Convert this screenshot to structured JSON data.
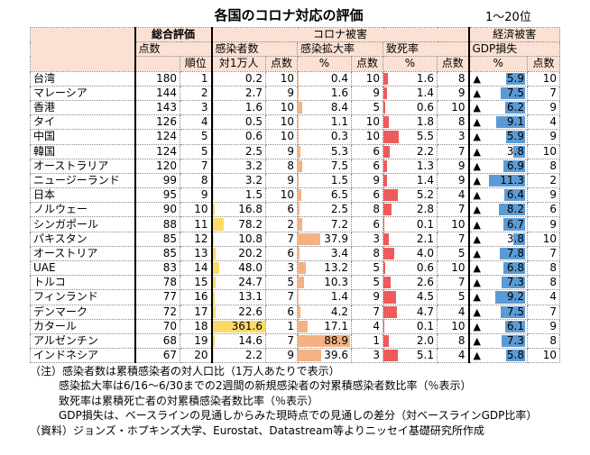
{
  "title": "各国のコロナ対応の評価",
  "range": "1～20位",
  "headers": {
    "overall": "総合評価",
    "corona": "コロナ被害",
    "economy": "経済被害",
    "score": "点数",
    "rank": "順位",
    "infected": "感染者数",
    "per10k": "対1万人",
    "pts": "点数",
    "spread": "感染拡大率",
    "pct": "%",
    "fatality": "致死率",
    "gdp": "GDP損失",
    "tri": "▲"
  },
  "rows": [
    {
      "country": "台湾",
      "score": 180,
      "rank": 1,
      "inf": "0.2",
      "infPts": 10,
      "spr": "0.4",
      "sprPts": 10,
      "fat": "1.6",
      "fatPts": 8,
      "gdp": "5.9",
      "gdpPts": 10
    },
    {
      "country": "マレーシア",
      "score": 144,
      "rank": 2,
      "inf": "2.7",
      "infPts": 9,
      "spr": "1.6",
      "sprPts": 9,
      "fat": "1.4",
      "fatPts": 9,
      "gdp": "7.5",
      "gdpPts": 7
    },
    {
      "country": "香港",
      "score": 143,
      "rank": 3,
      "inf": "1.6",
      "infPts": 10,
      "spr": "8.4",
      "sprPts": 5,
      "fat": "0.6",
      "fatPts": 10,
      "gdp": "6.2",
      "gdpPts": 9
    },
    {
      "country": "タイ",
      "score": 126,
      "rank": 4,
      "inf": "0.5",
      "infPts": 10,
      "spr": "1.1",
      "sprPts": 10,
      "fat": "1.8",
      "fatPts": 8,
      "gdp": "9.1",
      "gdpPts": 4
    },
    {
      "country": "中国",
      "score": 124,
      "rank": 5,
      "inf": "0.6",
      "infPts": 10,
      "spr": "0.3",
      "sprPts": 10,
      "fat": "5.5",
      "fatPts": 3,
      "gdp": "5.9",
      "gdpPts": 9
    },
    {
      "country": "韓国",
      "score": 124,
      "rank": 5,
      "inf": "2.5",
      "infPts": 9,
      "spr": "5.3",
      "sprPts": 6,
      "fat": "2.2",
      "fatPts": 7,
      "gdp": "3.8",
      "gdpPts": 10
    },
    {
      "country": "オーストラリア",
      "score": 120,
      "rank": 7,
      "inf": "3.2",
      "infPts": 8,
      "spr": "7.5",
      "sprPts": 6,
      "fat": "1.3",
      "fatPts": 9,
      "gdp": "6.9",
      "gdpPts": 8
    },
    {
      "country": "ニュージーランド",
      "score": 99,
      "rank": 8,
      "inf": "3.2",
      "infPts": 9,
      "spr": "1.5",
      "sprPts": 9,
      "fat": "1.4",
      "fatPts": 9,
      "gdp": "11.3",
      "gdpPts": 2
    },
    {
      "country": "日本",
      "score": 95,
      "rank": 9,
      "inf": "1.5",
      "infPts": 10,
      "spr": "6.5",
      "sprPts": 6,
      "fat": "5.2",
      "fatPts": 4,
      "gdp": "6.4",
      "gdpPts": 9
    },
    {
      "country": "ノルウェー",
      "score": 90,
      "rank": 10,
      "inf": "16.8",
      "infPts": 6,
      "spr": "2.5",
      "sprPts": 8,
      "fat": "2.8",
      "fatPts": 7,
      "gdp": "8.2",
      "gdpPts": 6
    },
    {
      "country": "シンガポール",
      "score": 88,
      "rank": 11,
      "inf": "78.2",
      "infPts": 2,
      "spr": "7.2",
      "sprPts": 6,
      "fat": "0.1",
      "fatPts": 10,
      "gdp": "6.7",
      "gdpPts": 9
    },
    {
      "country": "パキスタン",
      "score": 85,
      "rank": 12,
      "inf": "10.8",
      "infPts": 7,
      "spr": "37.9",
      "sprPts": 3,
      "fat": "2.1",
      "fatPts": 7,
      "gdp": "3.8",
      "gdpPts": 10
    },
    {
      "country": "オーストリア",
      "score": 85,
      "rank": 13,
      "inf": "20.2",
      "infPts": 6,
      "spr": "3.4",
      "sprPts": 8,
      "fat": "4.0",
      "fatPts": 5,
      "gdp": "7.8",
      "gdpPts": 7
    },
    {
      "country": "UAE",
      "score": 83,
      "rank": 14,
      "inf": "48.0",
      "infPts": 3,
      "spr": "13.2",
      "sprPts": 5,
      "fat": "0.6",
      "fatPts": 10,
      "gdp": "6.8",
      "gdpPts": 8
    },
    {
      "country": "トルコ",
      "score": 78,
      "rank": 15,
      "inf": "24.7",
      "infPts": 5,
      "spr": "10.3",
      "sprPts": 5,
      "fat": "2.6",
      "fatPts": 7,
      "gdp": "7.3",
      "gdpPts": 8
    },
    {
      "country": "フィンランド",
      "score": 77,
      "rank": 16,
      "inf": "13.1",
      "infPts": 7,
      "spr": "1.4",
      "sprPts": 9,
      "fat": "4.5",
      "fatPts": 5,
      "gdp": "9.2",
      "gdpPts": 4
    },
    {
      "country": "デンマーク",
      "score": 72,
      "rank": 17,
      "inf": "22.6",
      "infPts": 6,
      "spr": "4.2",
      "sprPts": 7,
      "fat": "4.7",
      "fatPts": 4,
      "gdp": "7.5",
      "gdpPts": 7
    },
    {
      "country": "カタール",
      "score": 70,
      "rank": 18,
      "inf": "361.6",
      "infPts": 1,
      "spr": "17.1",
      "sprPts": 4,
      "fat": "0.1",
      "fatPts": 10,
      "gdp": "6.1",
      "gdpPts": 9
    },
    {
      "country": "アルゼンチン",
      "score": 68,
      "rank": 19,
      "inf": "14.6",
      "infPts": 7,
      "spr": "88.9",
      "sprPts": 1,
      "fat": "2.0",
      "fatPts": 8,
      "gdp": "7.3",
      "gdpPts": 8
    },
    {
      "country": "インドネシア",
      "score": 67,
      "rank": 20,
      "inf": "2.2",
      "infPts": 9,
      "spr": "39.6",
      "sprPts": 3,
      "fat": "5.1",
      "fatPts": 4,
      "gdp": "5.8",
      "gdpPts": 10
    }
  ],
  "colors": {
    "header": "#fbe1d3",
    "inf": "#ffd966",
    "spr": "#f4b183",
    "fat": "#ef5b5b",
    "gdp": "#5b9bd5"
  },
  "notes": [
    "（注）感染者数は累積感染者の対人口比（1万人あたりで表示）",
    "感染拡大率は6/16～6/30までの2週間の新規感染者の対累積感染者数比率（％表示）",
    "致死率は累積死亡者の対累積感染者数比率（％表示）",
    "GDP損失は、ベースラインの見通しからみた現時点での見通しの差分（対ベースラインGDP比率）",
    "（資料）ジョンズ・ホプキンズ大学、Eurostat、Datastream等よりニッセイ基礎研究所作成"
  ]
}
